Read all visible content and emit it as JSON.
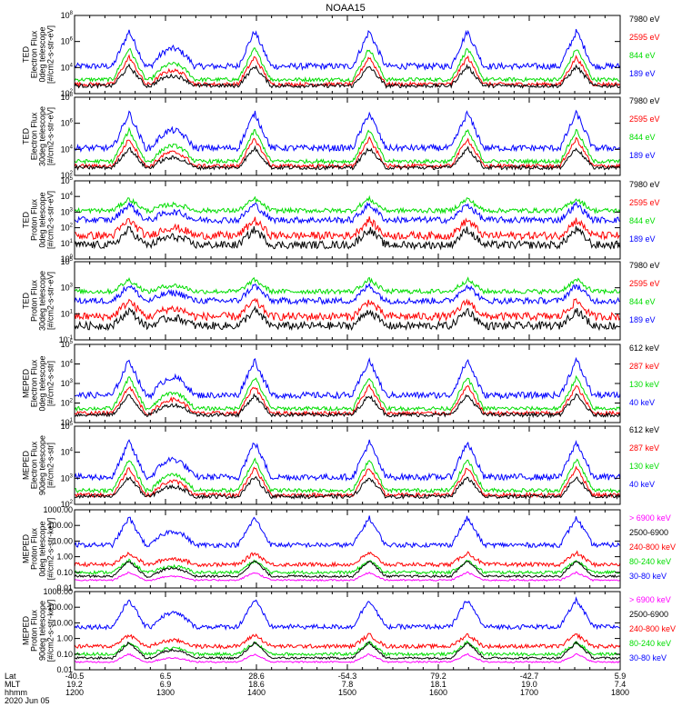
{
  "title": "NOAA15",
  "colors": {
    "blue": "#0000ff",
    "red": "#ff0000",
    "green": "#00dd00",
    "black": "#000000",
    "magenta": "#ff00ff",
    "axis": "#000000"
  },
  "chart_data": [
    {
      "type": "line",
      "ylabel": [
        "TED",
        "Electron Flux",
        "0deg telescope",
        "[#/cm2-s-str-eV]"
      ],
      "yticks": [
        "10^2",
        "10^4",
        "10^6",
        "10^8"
      ],
      "legend": [
        {
          "label": "7980 eV",
          "color": "black"
        },
        {
          "label": "2595 eV",
          "color": "red"
        },
        {
          "label": "844 eV",
          "color": "green"
        },
        {
          "label": "189 eV",
          "color": "blue"
        }
      ]
    },
    {
      "type": "line",
      "ylabel": [
        "TED",
        "Electron Flux",
        "30deg telescope",
        "[#/cm2-s-str-eV]"
      ],
      "yticks": [
        "10^2",
        "10^4",
        "10^6",
        "10^8"
      ],
      "legend": [
        {
          "label": "7980 eV",
          "color": "black"
        },
        {
          "label": "2595 eV",
          "color": "red"
        },
        {
          "label": "844 eV",
          "color": "green"
        },
        {
          "label": "189 eV",
          "color": "blue"
        }
      ]
    },
    {
      "type": "line",
      "ylabel": [
        "TED",
        "Proton Flux",
        "0deg telescope",
        "[#/cm2-s-str-eV]"
      ],
      "yticks": [
        "10^0",
        "10^1",
        "10^2",
        "10^3",
        "10^4",
        "10^5"
      ],
      "legend": [
        {
          "label": "7980 eV",
          "color": "black"
        },
        {
          "label": "2595 eV",
          "color": "red"
        },
        {
          "label": "844 eV",
          "color": "green"
        },
        {
          "label": "189 eV",
          "color": "blue"
        }
      ]
    },
    {
      "type": "line",
      "ylabel": [
        "TED",
        "Proton Flux",
        "30deg telescope",
        "[#/cm2-s-str-eV]"
      ],
      "yticks": [
        "10^-1",
        "10^1",
        "10^3",
        "10^5"
      ],
      "legend": [
        {
          "label": "7980 eV",
          "color": "black"
        },
        {
          "label": "2595 eV",
          "color": "red"
        },
        {
          "label": "844 eV",
          "color": "green"
        },
        {
          "label": "189 eV",
          "color": "blue"
        }
      ]
    },
    {
      "type": "line",
      "ylabel": [
        "MEPED",
        "Electron Flux",
        "0deg telescope",
        "[#/cm2-s-str]"
      ],
      "yticks": [
        "10^1",
        "10^2",
        "10^3",
        "10^4",
        "10^5"
      ],
      "legend": [
        {
          "label": "612 keV",
          "color": "black"
        },
        {
          "label": "287 keV",
          "color": "red"
        },
        {
          "label": "130 keV",
          "color": "green"
        },
        {
          "label": "40 keV",
          "color": "blue"
        }
      ]
    },
    {
      "type": "line",
      "ylabel": [
        "MEPED",
        "Electron Flux",
        "90deg telescope",
        "[#/cm2-s-str]"
      ],
      "yticks": [
        "10^2",
        "10^3",
        "10^4",
        "10^5"
      ],
      "legend": [
        {
          "label": "612 keV",
          "color": "black"
        },
        {
          "label": "287 keV",
          "color": "red"
        },
        {
          "label": "130 keV",
          "color": "green"
        },
        {
          "label": "40 keV",
          "color": "blue"
        }
      ]
    },
    {
      "type": "line",
      "ylabel": [
        "MEPED",
        "Proton Flux",
        "0deg telescope",
        "[#/cm2-s-str-keV]"
      ],
      "yticks": [
        "0.01",
        "0.10",
        "1.00",
        "10.00",
        "100.00",
        "1000.00"
      ],
      "legend": [
        {
          "label": "> 6900 keV",
          "color": "magenta"
        },
        {
          "label": "2500-6900",
          "color": "black"
        },
        {
          "label": "240-800 keV",
          "color": "red"
        },
        {
          "label": "80-240 keV",
          "color": "green"
        },
        {
          "label": "30-80 keV",
          "color": "blue"
        }
      ]
    },
    {
      "type": "line",
      "ylabel": [
        "MEPED",
        "Proton Flux",
        "90deg telescope",
        "[#/cm2-s-str-keV]"
      ],
      "yticks": [
        "0.01",
        "0.10",
        "1.00",
        "10.00",
        "100.00",
        "1000.00"
      ],
      "legend": [
        {
          "label": "> 6900 keV",
          "color": "magenta"
        },
        {
          "label": "2500-6900",
          "color": "black"
        },
        {
          "label": "240-800 keV",
          "color": "red"
        },
        {
          "label": "80-240 keV",
          "color": "green"
        },
        {
          "label": "30-80 keV",
          "color": "blue"
        }
      ]
    }
  ],
  "xaxis": {
    "row_labels": [
      "Lat",
      "MLT",
      "hhmm",
      "2020 Jun 05"
    ],
    "ticks": [
      {
        "lat": "-40.5",
        "mlt": "19.2",
        "hhmm": "1200"
      },
      {
        "lat": "6.5",
        "mlt": "6.9",
        "hhmm": "1300"
      },
      {
        "lat": "28.6",
        "mlt": "18.6",
        "hhmm": "1400"
      },
      {
        "lat": "-54.3",
        "mlt": "7.8",
        "hhmm": "1500"
      },
      {
        "lat": "79.2",
        "mlt": "18.1",
        "hhmm": "1600"
      },
      {
        "lat": "-42.7",
        "mlt": "19.0",
        "hhmm": "1700"
      },
      {
        "lat": "5.9",
        "mlt": "7.4",
        "hhmm": "1800"
      }
    ]
  }
}
